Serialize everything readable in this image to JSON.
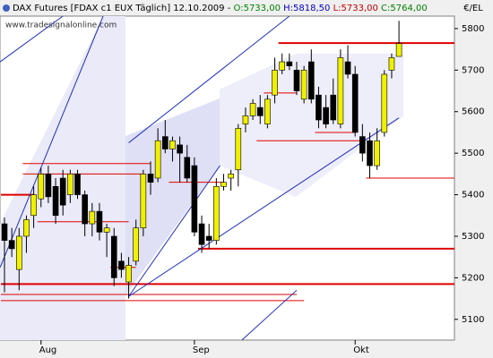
{
  "chart_data": {
    "type": "candlestick",
    "title": "DAX Futures [FDAX c1 EUX  Täglich] 12.10.2009 -",
    "ohlc_open": "O:5733,00",
    "ohlc_high": "H:5818,50",
    "ohlc_low": "L:5733,00",
    "ohlc_close": "C:5764,00",
    "watermark": "www.tradesignalonline.com",
    "y_label": "€/EL",
    "categories": [
      null,
      null,
      null,
      null,
      null,
      "Aug",
      null,
      null,
      null,
      null,
      null,
      null,
      null,
      null,
      null,
      null,
      null,
      null,
      null,
      null,
      null,
      null,
      null,
      null,
      null,
      null,
      "Sep",
      null,
      null,
      null,
      null,
      null,
      null,
      null,
      null,
      null,
      null,
      null,
      null,
      null,
      null,
      null,
      null,
      null,
      null,
      null,
      null,
      null,
      "Okt",
      null,
      null,
      null,
      null,
      null,
      null
    ],
    "open": [
      5330,
      5290,
      5220,
      5300,
      5350,
      5390,
      5450,
      5420,
      5440,
      5400,
      5450,
      5400,
      5330,
      5360,
      5310,
      5300,
      5240,
      5190,
      5240,
      5320,
      5450,
      5440,
      5540,
      5510,
      5520,
      5490,
      5470,
      5330,
      5300,
      5290,
      5420,
      5440,
      5460,
      5570,
      5590,
      5610,
      5570,
      5640,
      5700,
      5720,
      5700,
      5630,
      5720,
      5640,
      5610,
      5640,
      5570,
      5720,
      5690,
      5540,
      5530,
      5470,
      5550,
      5700,
      5733
    ],
    "high": [
      5345,
      5320,
      5320,
      5350,
      5420,
      5465,
      5470,
      5440,
      5460,
      5460,
      5460,
      5410,
      5380,
      5380,
      5330,
      5320,
      5260,
      5250,
      5340,
      5460,
      5480,
      5560,
      5580,
      5540,
      5540,
      5520,
      5490,
      5350,
      5330,
      5440,
      5450,
      5460,
      5570,
      5610,
      5630,
      5640,
      5640,
      5730,
      5740,
      5740,
      5720,
      5710,
      5750,
      5660,
      5640,
      5680,
      5750,
      5760,
      5710,
      5570,
      5550,
      5560,
      5700,
      5740,
      5818.5
    ],
    "low": [
      5165,
      5250,
      5170,
      5260,
      5320,
      5370,
      5380,
      5330,
      5350,
      5380,
      5390,
      5300,
      5300,
      5290,
      5250,
      5180,
      5200,
      5150,
      5230,
      5300,
      5400,
      5430,
      5500,
      5480,
      5430,
      5430,
      5300,
      5260,
      5270,
      5280,
      5410,
      5410,
      5420,
      5550,
      5580,
      5570,
      5560,
      5620,
      5690,
      5700,
      5640,
      5620,
      5620,
      5560,
      5560,
      5570,
      5560,
      5680,
      5540,
      5480,
      5440,
      5460,
      5540,
      5680,
      5733
    ],
    "close": [
      5290,
      5270,
      5300,
      5340,
      5400,
      5450,
      5395,
      5350,
      5375,
      5450,
      5400,
      5330,
      5360,
      5310,
      5320,
      5200,
      5220,
      5230,
      5320,
      5450,
      5430,
      5530,
      5510,
      5530,
      5500,
      5440,
      5310,
      5280,
      5290,
      5420,
      5430,
      5450,
      5560,
      5590,
      5620,
      5590,
      5630,
      5700,
      5720,
      5710,
      5650,
      5700,
      5630,
      5580,
      5570,
      5580,
      5730,
      5690,
      5550,
      5500,
      5470,
      5530,
      5690,
      5730,
      5764
    ],
    "up_color": "#f0f000",
    "down_color": "#000000",
    "ylim": [
      5050,
      5830
    ],
    "yticks": [
      5100,
      5200,
      5300,
      5400,
      5500,
      5600,
      5700,
      5800
    ],
    "levels": [
      {
        "value": 5765,
        "from": 38,
        "thick": true
      },
      {
        "value": 5270,
        "from": 27,
        "thick": true
      },
      {
        "value": 5185,
        "from": 0,
        "thick": true
      },
      {
        "value": 5400,
        "from": 0,
        "to": 4,
        "thick": true
      },
      {
        "value": 5475,
        "from": 3,
        "to": 20,
        "thick": false
      },
      {
        "value": 5450,
        "from": 3,
        "to": 19,
        "thick": false
      },
      {
        "value": 5335,
        "from": 5,
        "to": 17,
        "thick": false
      },
      {
        "value": 5225,
        "from": 15,
        "to": 18,
        "thick": false
      },
      {
        "value": 5160,
        "from": 0,
        "to": 40,
        "thick": false
      },
      {
        "value": 5145,
        "from": 0,
        "to": 41,
        "thick": false
      },
      {
        "value": 5645,
        "from": 36,
        "to": 40,
        "thick": false
      },
      {
        "value": 5530,
        "from": 35,
        "to": 49,
        "thick": false
      },
      {
        "value": 5550,
        "from": 43,
        "to": 48,
        "thick": false
      },
      {
        "value": 5440,
        "from": 50,
        "thick": false
      },
      {
        "value": 5430,
        "from": 23,
        "to": 30,
        "thick": false
      }
    ],
    "level_color": "#e00000",
    "trendlines": [
      {
        "x0": 17,
        "y0": 5155,
        "x1": 54,
        "y1": 5585
      },
      {
        "x0": 17,
        "y0": 5525,
        "x1": 39,
        "y1": 5830
      },
      {
        "x0": -0.6,
        "y0": 5225,
        "x1": 13.5,
        "y1": 5830
      },
      {
        "x0": -0.6,
        "y0": 5720,
        "x1": 8,
        "y1": 5830
      },
      {
        "x0": 17,
        "y0": 5155,
        "x1": 29.5,
        "y1": 5470
      },
      {
        "x0": 32.5,
        "y0": 5050,
        "x1": 40,
        "y1": 5170
      }
    ],
    "trend_color": "#2030c0"
  }
}
